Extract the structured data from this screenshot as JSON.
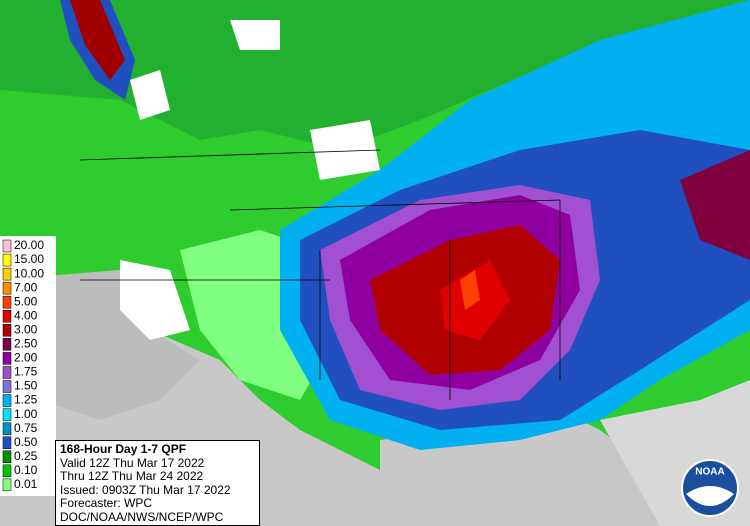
{
  "legend": {
    "entries": [
      {
        "label": "20.00",
        "color": "#ffc0d0"
      },
      {
        "label": "15.00",
        "color": "#ffff00"
      },
      {
        "label": "10.00",
        "color": "#ffd000"
      },
      {
        "label": "7.00",
        "color": "#ff8c00"
      },
      {
        "label": "5.00",
        "color": "#ff4000"
      },
      {
        "label": "4.00",
        "color": "#e00000"
      },
      {
        "label": "3.00",
        "color": "#b00000"
      },
      {
        "label": "2.50",
        "color": "#800040"
      },
      {
        "label": "2.00",
        "color": "#9000a0"
      },
      {
        "label": "1.75",
        "color": "#a050d0"
      },
      {
        "label": "1.50",
        "color": "#8070e0"
      },
      {
        "label": "1.25",
        "color": "#00b0f0"
      },
      {
        "label": "1.00",
        "color": "#00e0ff"
      },
      {
        "label": "0.75",
        "color": "#0090c8"
      },
      {
        "label": "0.50",
        "color": "#2050c0"
      },
      {
        "label": "0.25",
        "color": "#009000"
      },
      {
        "label": "0.10",
        "color": "#00c800"
      },
      {
        "label": "0.01",
        "color": "#80ff80"
      }
    ]
  },
  "info": {
    "title": "168-Hour Day 1-7 QPF",
    "lines": [
      "Valid 12Z Thu Mar 17 2022",
      "Thru 12Z Thu Mar 24 2022",
      "Issued: 0903Z Thu Mar 17 2022",
      "Forecaster: WPC",
      "DOC/NOAA/NWS/NCEP/WPC"
    ]
  },
  "logo": {
    "text": "NOAA"
  }
}
